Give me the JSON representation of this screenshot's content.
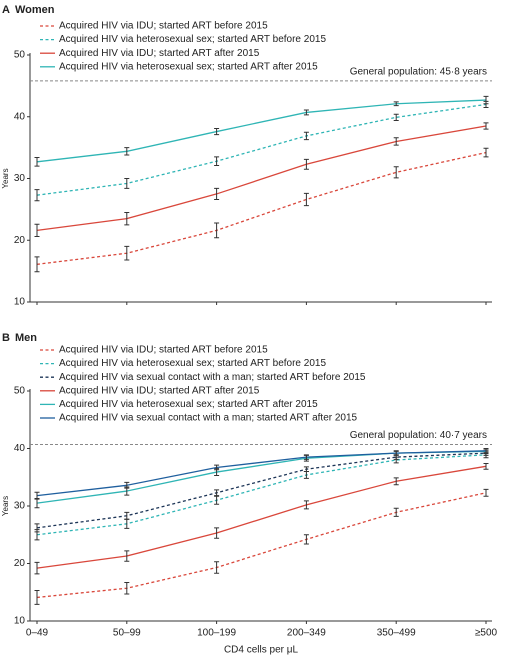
{
  "chart_data": [
    {
      "type": "line",
      "panel": "A",
      "title": "Women",
      "y_label": "Years",
      "categories": [
        null,
        null,
        null,
        null,
        null,
        null
      ],
      "ylim": [
        10,
        50
      ],
      "yticks": [
        10,
        20,
        30,
        40,
        50
      ],
      "reference": {
        "value": 45.8,
        "label": "General population: 45·8 years"
      },
      "series": [
        {
          "name": "Acquired HIV via IDU; started ART before 2015",
          "color": "#d9473b",
          "style": "dashed",
          "values": [
            16.1,
            17.9,
            21.6,
            26.6,
            31.0,
            34.2
          ],
          "errors": [
            1.2,
            1.1,
            1.2,
            1.0,
            0.9,
            0.7
          ]
        },
        {
          "name": "Acquired HIV via heterosexual sex; started ART before 2015",
          "color": "#2fb5b5",
          "style": "dashed",
          "values": [
            27.3,
            29.2,
            32.8,
            36.9,
            39.9,
            42.0
          ],
          "errors": [
            0.9,
            0.8,
            0.7,
            0.6,
            0.5,
            0.5
          ]
        },
        {
          "name": "Acquired HIV via IDU; started ART after 2015",
          "color": "#d9473b",
          "style": "solid",
          "values": [
            21.6,
            23.5,
            27.5,
            32.3,
            36.0,
            38.5
          ],
          "errors": [
            1.0,
            1.0,
            0.9,
            0.8,
            0.6,
            0.5
          ]
        },
        {
          "name": "Acquired HIV via heterosexual sex; started ART after 2015",
          "color": "#2fb5b5",
          "style": "solid",
          "values": [
            32.7,
            34.4,
            37.6,
            40.7,
            42.1,
            42.7
          ],
          "errors": [
            0.7,
            0.6,
            0.5,
            0.4,
            0.3,
            0.6
          ]
        }
      ]
    },
    {
      "type": "line",
      "panel": "B",
      "title": "Men",
      "y_label": "Years",
      "x_label": "CD4 cells per μL",
      "categories": [
        "0–49",
        "50–99",
        "100–199",
        "200–349",
        "350–499",
        "≥500"
      ],
      "ylim": [
        10,
        50
      ],
      "yticks": [
        10,
        20,
        30,
        40,
        50
      ],
      "reference": {
        "value": 40.7,
        "label": "General population: 40·7 years"
      },
      "series": [
        {
          "name": "Acquired HIV via IDU; started ART before 2015",
          "color": "#d9473b",
          "style": "dashed",
          "values": [
            14.1,
            15.7,
            19.3,
            24.2,
            28.9,
            32.3
          ],
          "errors": [
            1.2,
            1.0,
            1.0,
            0.8,
            0.7,
            0.6
          ]
        },
        {
          "name": "Acquired HIV via heterosexual sex; started ART before 2015",
          "color": "#2fb5b5",
          "style": "dashed",
          "values": [
            25.0,
            26.9,
            31.0,
            35.4,
            38.0,
            38.9
          ],
          "errors": [
            0.9,
            0.8,
            0.7,
            0.6,
            0.5,
            0.5
          ]
        },
        {
          "name": "Acquired HIV via sexual contact with a man; started ART before 2015",
          "color": "#1d3557",
          "style": "dashed",
          "values": [
            26.2,
            28.3,
            32.3,
            36.4,
            38.5,
            39.2
          ],
          "errors": [
            0.7,
            0.6,
            0.5,
            0.4,
            0.4,
            0.4
          ]
        },
        {
          "name": "Acquired HIV via IDU; started ART after 2015",
          "color": "#d9473b",
          "style": "solid",
          "values": [
            19.2,
            21.3,
            25.3,
            30.2,
            34.3,
            36.9
          ],
          "errors": [
            1.0,
            0.9,
            0.9,
            0.7,
            0.6,
            0.5
          ]
        },
        {
          "name": "Acquired HIV via heterosexual sex; started ART after 2015",
          "color": "#2fb5b5",
          "style": "solid",
          "values": [
            30.5,
            32.6,
            35.9,
            38.3,
            39.2,
            39.5
          ],
          "errors": [
            0.8,
            0.7,
            0.6,
            0.5,
            0.4,
            0.4
          ]
        },
        {
          "name": "Acquired HIV via sexual contact with a man; started ART after 2015",
          "color": "#1f5f9e",
          "style": "solid",
          "values": [
            31.8,
            33.6,
            36.7,
            38.5,
            39.2,
            39.6
          ],
          "errors": [
            0.6,
            0.5,
            0.4,
            0.4,
            0.3,
            0.4
          ]
        }
      ]
    }
  ]
}
